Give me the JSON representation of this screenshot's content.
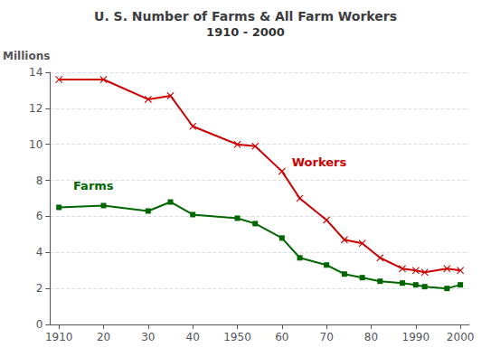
{
  "chart_data": {
    "type": "line",
    "title": "U. S. Number of Farms & All Farm Workers",
    "subtitle": "1910 - 2000",
    "ylabel": "Millions",
    "x": [
      1910,
      1920,
      1930,
      1935,
      1940,
      1950,
      1954,
      1960,
      1964,
      1970,
      1974,
      1978,
      1982,
      1987,
      1990,
      1992,
      1997,
      2000
    ],
    "series": [
      {
        "name": "Workers",
        "color": "#CC0000",
        "marker": "x",
        "values": [
          13.6,
          13.6,
          12.5,
          12.7,
          11.0,
          10.0,
          9.9,
          8.5,
          7.0,
          5.8,
          4.7,
          4.5,
          3.7,
          3.1,
          3.0,
          2.9,
          3.1,
          3.0
        ]
      },
      {
        "name": "Farms",
        "color": "#006600",
        "marker": "square",
        "values": [
          6.5,
          6.6,
          6.3,
          6.8,
          6.1,
          5.9,
          5.6,
          4.8,
          3.7,
          3.3,
          2.8,
          2.6,
          2.4,
          2.3,
          2.2,
          2.1,
          2.0,
          2.2
        ]
      }
    ],
    "xlim": [
      1908,
      2002
    ],
    "xticks": [
      1910,
      {
        "value": 1920,
        "label": "20"
      },
      {
        "value": 1930,
        "label": "30"
      },
      {
        "value": 1940,
        "label": "40"
      },
      1950,
      {
        "value": 1960,
        "label": "60"
      },
      {
        "value": 1970,
        "label": "70"
      },
      {
        "value": 1980,
        "label": "80"
      },
      1990,
      2000
    ],
    "ylim": [
      0,
      14
    ],
    "yticks": [
      0,
      2,
      4,
      6,
      8,
      10,
      12,
      14
    ],
    "grid": true,
    "annotations": [
      {
        "text": "Workers",
        "x": 1962,
        "y": 8.6,
        "color": "#CC0000"
      },
      {
        "text": "Farms",
        "x": 1913,
        "y": 7.3,
        "color": "#006600"
      }
    ]
  }
}
